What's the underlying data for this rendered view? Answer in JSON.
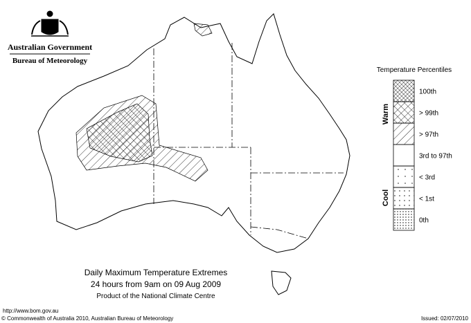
{
  "header": {
    "agency": "Australian Government",
    "bureau": "Bureau of Meteorology"
  },
  "map": {
    "title": "Daily Maximum Temperature Extremes",
    "period": "24 hours from 9am on 09 Aug 2009",
    "product": "Product of the National Climate Centre"
  },
  "legend": {
    "title": "Temperature Percentiles",
    "warm": "Warm",
    "cool": "Cool",
    "entries": [
      "100th",
      "> 99th",
      "> 97th",
      "3rd to 97th",
      "< 3rd",
      "< 1st",
      "0th"
    ]
  },
  "footer": {
    "url": "http://www.bom.gov.au",
    "copyright": "© Commonwealth of Australia 2010, Australian Bureau of Meteorology",
    "issued": "Issued: 02/07/2010"
  }
}
